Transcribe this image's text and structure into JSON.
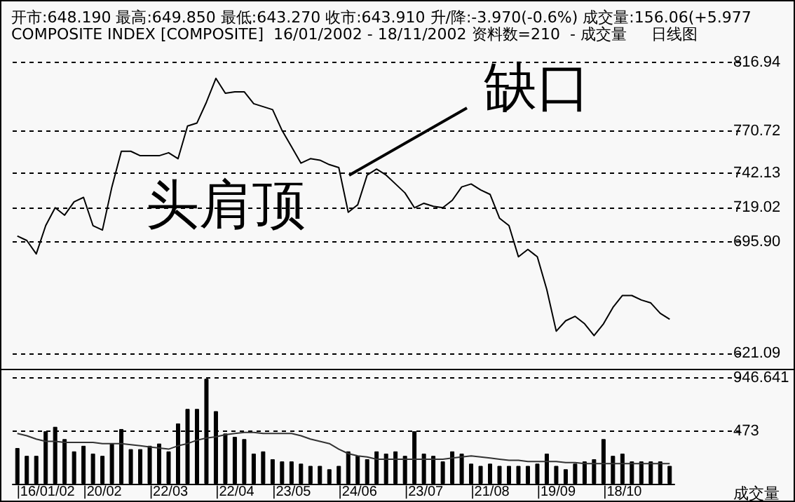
{
  "chart_data": [
    {
      "type": "line",
      "title": "开市:648.190 最高:649.850 最低:643.270 收市:643.910 升/降:-3.970(-0.6%) 成交量:156.06(+5.977",
      "subtitle": "COMPOSITE INDEX [COMPOSITE]  16/01/2002 - 18/11/2002 资料数=210  - 成交量     日线图",
      "categories": [
        null,
        null,
        null,
        null,
        null,
        null,
        null,
        null,
        null,
        null,
        null,
        null,
        null,
        null,
        null,
        null,
        null,
        null,
        null,
        null,
        null,
        null,
        null,
        null,
        null,
        null,
        null,
        null,
        null,
        null,
        null,
        null,
        null,
        null,
        null,
        null,
        null,
        null,
        null,
        null,
        null,
        null,
        null,
        null,
        null,
        null,
        null,
        null,
        null,
        null,
        null,
        null,
        null,
        null,
        null,
        null,
        null,
        null,
        null,
        null,
        null,
        null,
        null,
        null,
        null,
        null,
        null,
        null,
        null,
        null
      ],
      "values": [
        700,
        697,
        688,
        707,
        719,
        714,
        723,
        726,
        707,
        704,
        733,
        757,
        757,
        754,
        754,
        754,
        756,
        752,
        774,
        776,
        790,
        806,
        796,
        797,
        797,
        789,
        787,
        785,
        771,
        760,
        749,
        752,
        751,
        748,
        746,
        716,
        721,
        741,
        745,
        741,
        735,
        729,
        719,
        722,
        720,
        719,
        724,
        733,
        735,
        731,
        728,
        712,
        707,
        686,
        691,
        686,
        664,
        636,
        643,
        646,
        641,
        633,
        641,
        652,
        660,
        660,
        657,
        655,
        648,
        644
      ],
      "color": "#000000",
      "ylim": [
        621.09,
        816.94
      ],
      "yticks": [
        621.09,
        {
          "value": 695.9,
          "label": "695.90"
        },
        719.02,
        742.13,
        770.72,
        816.94
      ],
      "grid": "y",
      "tick_labels": "y",
      "annotations": [
        "头肩顶",
        "缺口"
      ]
    },
    {
      "type": "bar",
      "ylabel": "成交量",
      "categories": [
        null,
        null,
        null,
        "|16/01/02",
        null,
        null,
        null,
        null,
        null,
        "|20/02",
        null,
        null,
        null,
        null,
        null,
        null,
        "|22/03",
        null,
        null,
        null,
        null,
        null,
        null,
        "|22/04",
        null,
        null,
        null,
        null,
        null,
        "|23/05",
        null,
        null,
        null,
        null,
        null,
        null,
        "|24/06",
        null,
        null,
        null,
        null,
        null,
        null,
        "|23/07",
        null,
        null,
        null,
        null,
        null,
        null,
        "|21/08",
        null,
        null,
        null,
        null,
        null,
        null,
        "|19/09",
        null,
        null,
        null,
        null,
        null,
        null,
        "|18/10",
        null,
        null,
        null,
        null,
        null
      ],
      "series": [
        {
          "color": "#000000",
          "values": [
            320,
            250,
            250,
            470,
            510,
            400,
            290,
            340,
            270,
            250,
            360,
            490,
            310,
            310,
            340,
            360,
            290,
            540,
            670,
            670,
            940,
            650,
            450,
            420,
            400,
            270,
            290,
            220,
            200,
            200,
            180,
            160,
            160,
            130,
            160,
            290,
            250,
            220,
            290,
            270,
            290,
            250,
            470,
            270,
            250,
            200,
            290,
            270,
            180,
            160,
            180,
            160,
            160,
            160,
            160,
            180,
            270,
            160,
            130,
            180,
            200,
            220,
            400,
            250,
            270,
            200,
            200,
            200,
            200,
            160
          ]
        },
        {
          "type": "line",
          "color": "#333333",
          "values": [
            450,
            430,
            400,
            380,
            380,
            370,
            370,
            370,
            370,
            360,
            360,
            360,
            350,
            340,
            330,
            320,
            310,
            340,
            360,
            390,
            410,
            420,
            440,
            450,
            460,
            460,
            450,
            450,
            450,
            450,
            430,
            400,
            380,
            360,
            310,
            270,
            250,
            240,
            220,
            220,
            220,
            220,
            220,
            220,
            220,
            220,
            230,
            240,
            250,
            240,
            230,
            220,
            210,
            210,
            200,
            200,
            200,
            200,
            190,
            190,
            180,
            180,
            180,
            180,
            180,
            180,
            180,
            180,
            180,
            180
          ]
        }
      ],
      "ylim": [
        0,
        946.641
      ],
      "yticks": [
        473,
        946.641
      ],
      "grid": "y"
    }
  ]
}
